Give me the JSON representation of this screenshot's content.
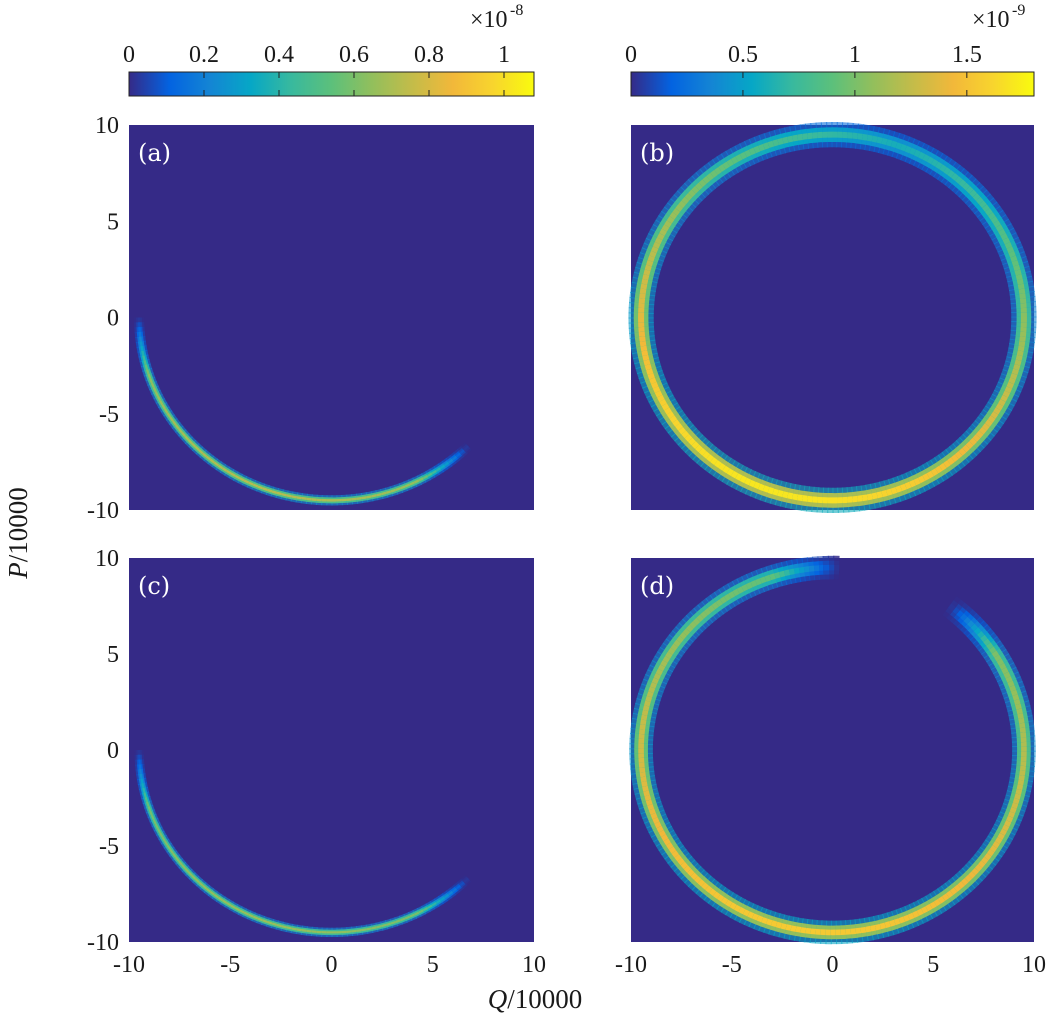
{
  "chart_data": [
    {
      "type": "heatmap",
      "panel_label": "(a)",
      "xlim": [
        -10,
        10
      ],
      "ylim": [
        -10,
        10
      ],
      "colorbar": {
        "ticks": [
          "0",
          "0.2",
          "0.4",
          "0.6",
          "0.8",
          "1"
        ],
        "tick_values": [
          0,
          0.2,
          0.4,
          0.6,
          0.8,
          1.0
        ],
        "range": [
          0,
          1.08
        ],
        "exponent_label": "×10",
        "exponent": "-8"
      },
      "feature": {
        "shape": "arc",
        "center": [
          0,
          0
        ],
        "radius": 9.5,
        "from_deg": 180,
        "to_deg": 315,
        "peak_at_deg": 250,
        "peak": 0.72,
        "base": 0.3,
        "falloff": 75,
        "width": 0.12
      }
    },
    {
      "type": "heatmap",
      "panel_label": "(b)",
      "xlim": [
        -10,
        10
      ],
      "ylim": [
        -10,
        10
      ],
      "colorbar": {
        "ticks": [
          "0",
          "0.5",
          "1",
          "1.5"
        ],
        "tick_values": [
          0,
          0.5,
          1.0,
          1.5
        ],
        "range": [
          0,
          1.8
        ],
        "exponent_label": "×10",
        "exponent": "-9"
      },
      "feature": {
        "shape": "ring",
        "center": [
          0,
          0
        ],
        "radius": 9.5,
        "from_deg": 0,
        "to_deg": 360,
        "peak_at_deg": 250,
        "peak": 1.7,
        "base": 0.38,
        "falloff": 95,
        "width": 0.3
      }
    },
    {
      "type": "heatmap",
      "panel_label": "(c)",
      "xlim": [
        -10,
        10
      ],
      "ylim": [
        -10,
        10
      ],
      "feature": {
        "shape": "arc",
        "center": [
          0,
          0
        ],
        "radius": 9.5,
        "from_deg": 180,
        "to_deg": 315,
        "peak_at_deg": 250,
        "peak": 0.66,
        "base": 0.28,
        "falloff": 75,
        "width": 0.11
      }
    },
    {
      "type": "heatmap",
      "panel_label": "(d)",
      "xlim": [
        -10,
        10
      ],
      "ylim": [
        -10,
        10
      ],
      "feature": {
        "shape": "ring",
        "center": [
          0,
          0
        ],
        "radius": 9.5,
        "from_deg": 52,
        "to_deg": 452,
        "gap_deg": [
          52,
          88
        ],
        "peak_at_deg": 260,
        "peak": 1.55,
        "base": 0.5,
        "falloff": 110,
        "width": 0.28
      }
    }
  ],
  "axes": {
    "xlabel_var": "Q",
    "xlabel_rest": "/10000",
    "ylabel_var": "P",
    "ylabel_rest": "/10000",
    "x_ticks": [
      "-10",
      "-5",
      "0",
      "5",
      "10"
    ],
    "y_ticks": [
      "10",
      "5",
      "0",
      "-5",
      "-10"
    ]
  },
  "colormap": "parula",
  "background_color": "#352a87"
}
